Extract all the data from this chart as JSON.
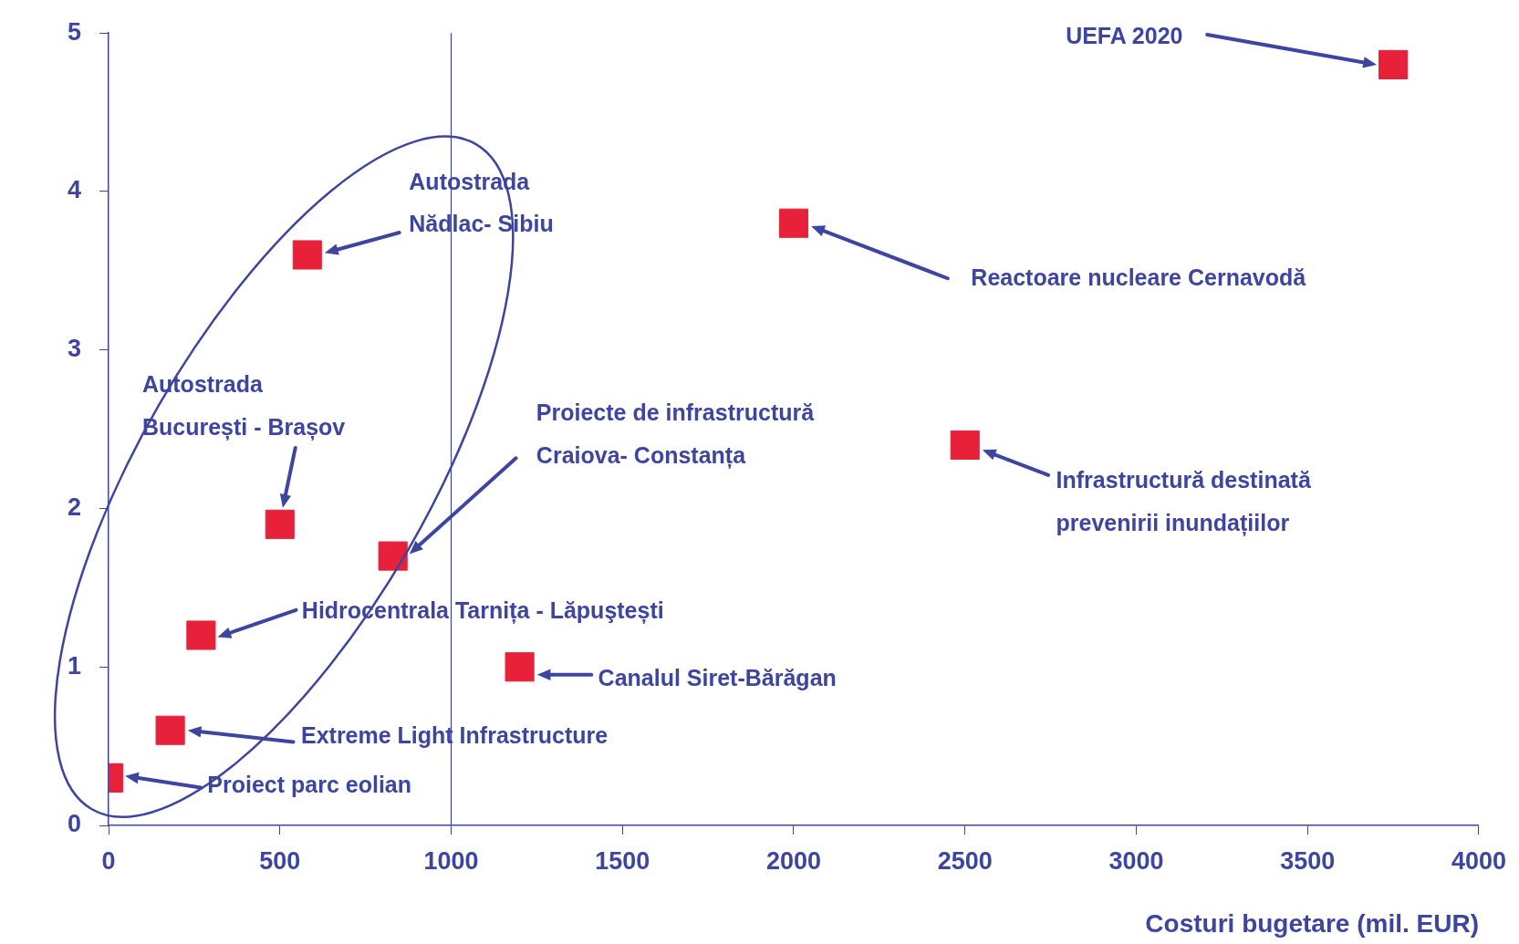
{
  "chart_data": {
    "type": "scatter",
    "x": [
      0,
      180,
      270,
      500,
      830,
      1200,
      580,
      2000,
      2500,
      3750
    ],
    "values": [
      0.3,
      0.6,
      1.2,
      1.9,
      1.7,
      1.0,
      3.6,
      3.8,
      2.4,
      4.8
    ],
    "color": "#e8213a",
    "marker": "square",
    "xlabel": "Costuri bugetare (mil. EUR)",
    "xlim": [
      0,
      4000
    ],
    "xticks": [
      0,
      500,
      1000,
      1500,
      2000,
      2500,
      3000,
      3500,
      4000
    ],
    "ylim": [
      0,
      5
    ],
    "yticks": [
      0,
      1,
      2,
      3,
      4,
      5
    ],
    "ref_lines": [
      {
        "axis": "x",
        "value": 1000,
        "color": "#3d45a0"
      }
    ],
    "annotations": [
      "Proiect parc eolian",
      "Extreme Light Infrastructure",
      "Hidrocentrala Tarnița - Lăpuştești",
      "Autostrada\nBucurești - Brașov",
      "Proiecte de infrastructură\nCraiova- Constanța",
      "Canalul Siret-Bărăgan",
      "Autostrada\nNădlac- Sibiu",
      "Reactoare nucleare Cernavodă",
      "Infrastructură destinată\nprevenirii inundațiilor",
      "UEFA 2020"
    ]
  }
}
